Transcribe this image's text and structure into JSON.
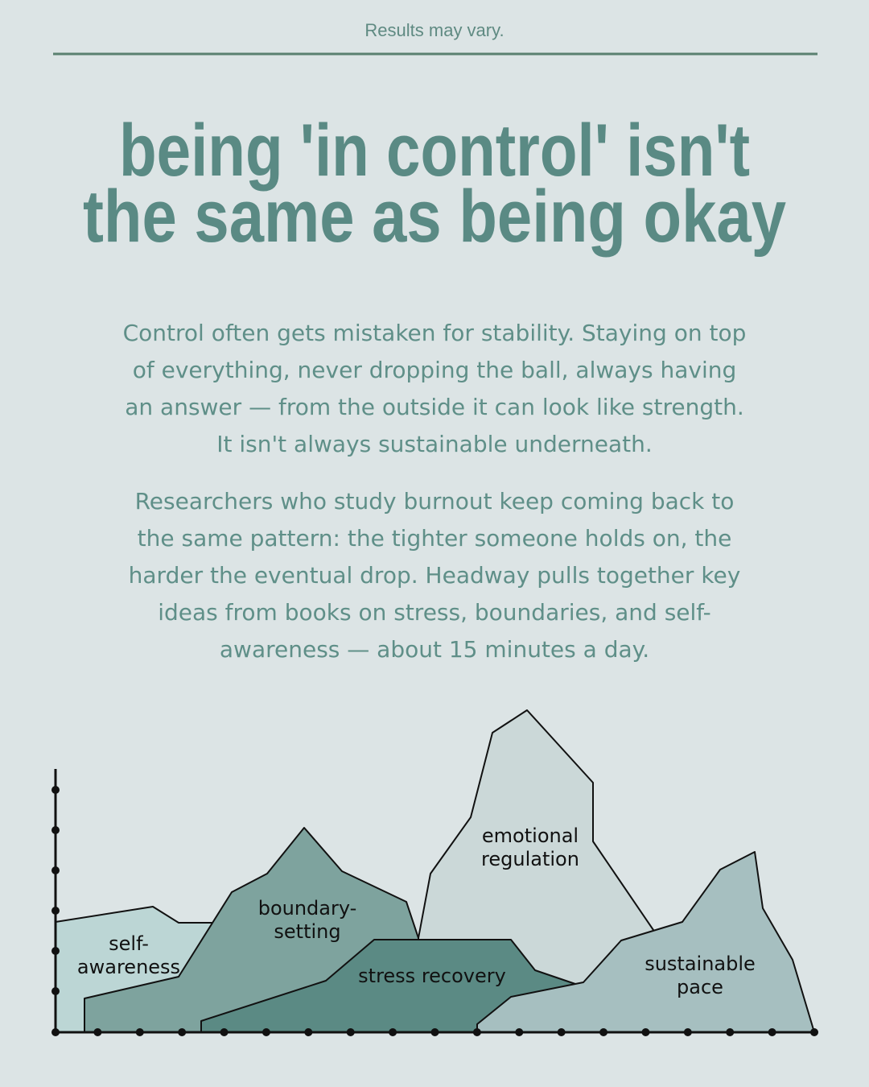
{
  "header": {
    "note": "Results may vary."
  },
  "title": {
    "lines": [
      "being 'in control' isn't",
      "the same as being okay"
    ]
  },
  "paragraphs": [
    {
      "lines": [
        "Control often gets mistaken for stability. Staying on top",
        "of everything, never dropping the ball, always having",
        "an answer — from the outside it can look like strength.",
        "It isn't always sustainable underneath."
      ]
    },
    {
      "lines": [
        "Researchers who study burnout keep coming back to",
        "the same pattern: the tighter someone holds on, the",
        "harder the eventual drop. Headway pulls together key",
        "ideas from books on stress, boundaries, and self-",
        "awareness — about 15 minutes a day."
      ]
    }
  ],
  "illustration": {
    "labels": [
      {
        "lines": [
          "self-",
          "awareness"
        ]
      },
      {
        "lines": [
          "boundary-",
          "setting"
        ]
      },
      {
        "lines": [
          "emotional",
          "regulation"
        ]
      },
      {
        "lines": [
          "stress recovery"
        ]
      },
      {
        "lines": [
          "sustainable",
          "pace"
        ]
      }
    ]
  }
}
